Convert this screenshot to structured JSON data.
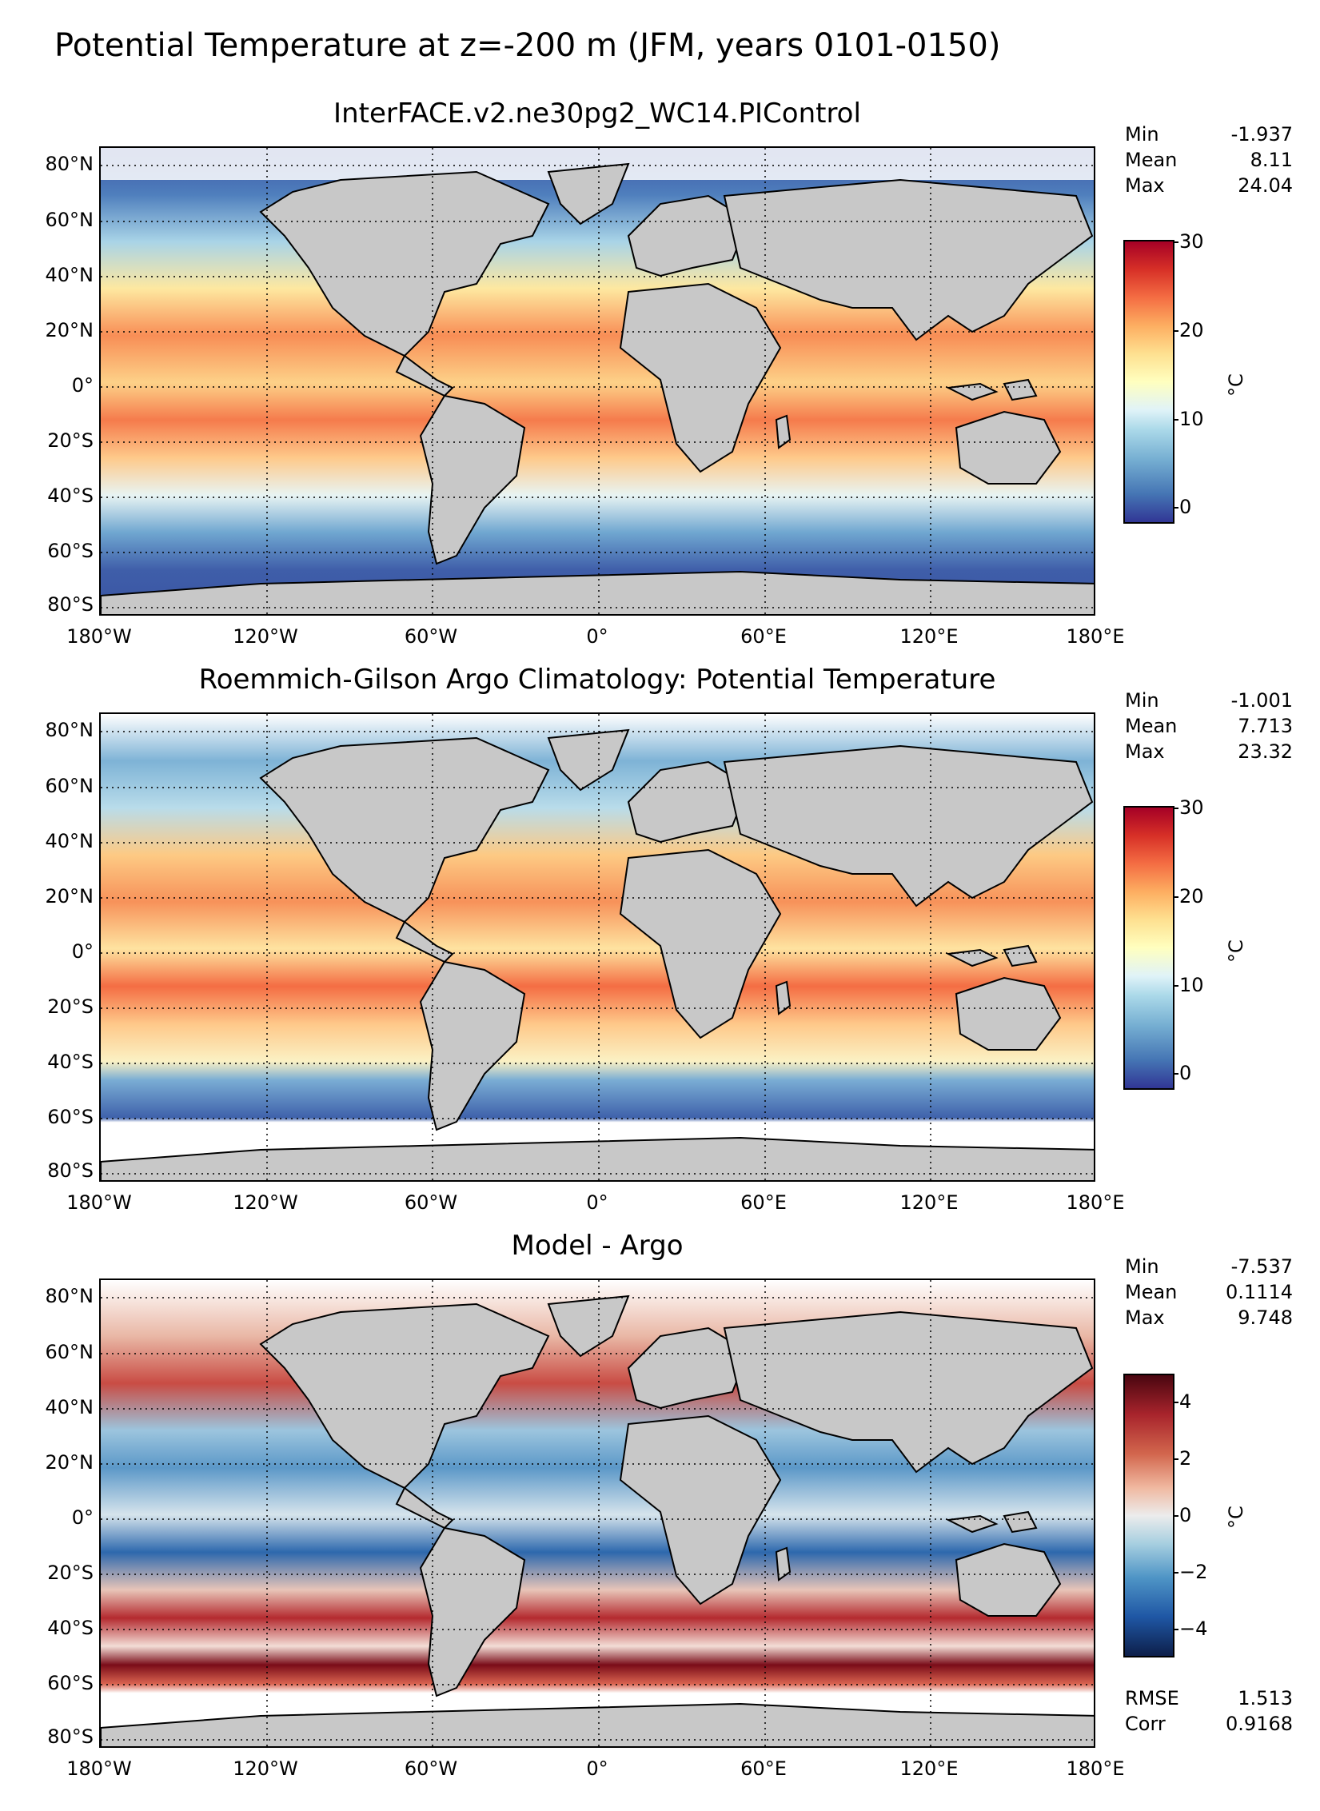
{
  "figure": {
    "suptitle": "Potential Temperature at z=-200 m (JFM, years 0101-0150)",
    "lat_labels": [
      "80°N",
      "60°N",
      "40°N",
      "20°N",
      "0°",
      "20°S",
      "40°S",
      "60°S",
      "80°S"
    ],
    "lon_labels": [
      "180°W",
      "120°W",
      "60°W",
      "0°",
      "60°E",
      "120°E",
      "180°E"
    ],
    "colors": {
      "land": "#c8c8c8",
      "missing": "#ffffff",
      "coast": "#000000",
      "grid": "#000000"
    }
  },
  "panels": [
    {
      "title": "InterFACE.v2.ne30pg2_WC14.PIControl",
      "stats": {
        "min_label": "Min",
        "min": "-1.937",
        "mean_label": "Mean",
        "mean": "8.11",
        "max_label": "Max",
        "max": "24.04"
      },
      "colorbar": {
        "ticks": [
          "30",
          "20",
          "10",
          "0"
        ],
        "unit": "°C",
        "range": [
          -2,
          30
        ],
        "cmap": "RdYlBu_r"
      }
    },
    {
      "title": "Roemmich-Gilson Argo Climatology: Potential Temperature",
      "stats": {
        "min_label": "Min",
        "min": "-1.001",
        "mean_label": "Mean",
        "mean": "7.713",
        "max_label": "Max",
        "max": "23.32"
      },
      "colorbar": {
        "ticks": [
          "30",
          "20",
          "10",
          "0"
        ],
        "unit": "°C",
        "range": [
          -2,
          30
        ],
        "cmap": "RdYlBu_r"
      }
    },
    {
      "title": "Model - Argo",
      "stats": {
        "min_label": "Min",
        "min": "-7.537",
        "mean_label": "Mean",
        "mean": "0.1114",
        "max_label": "Max",
        "max": "9.748"
      },
      "colorbar": {
        "ticks": [
          "4",
          "2",
          "0",
          "−2",
          "−4"
        ],
        "unit": "°C",
        "range": [
          -5,
          5
        ],
        "cmap": "diverging blue-white-red"
      },
      "error_stats": {
        "rmse_label": "RMSE",
        "rmse": "1.513",
        "corr_label": "Corr",
        "corr": "0.9168"
      }
    }
  ]
}
